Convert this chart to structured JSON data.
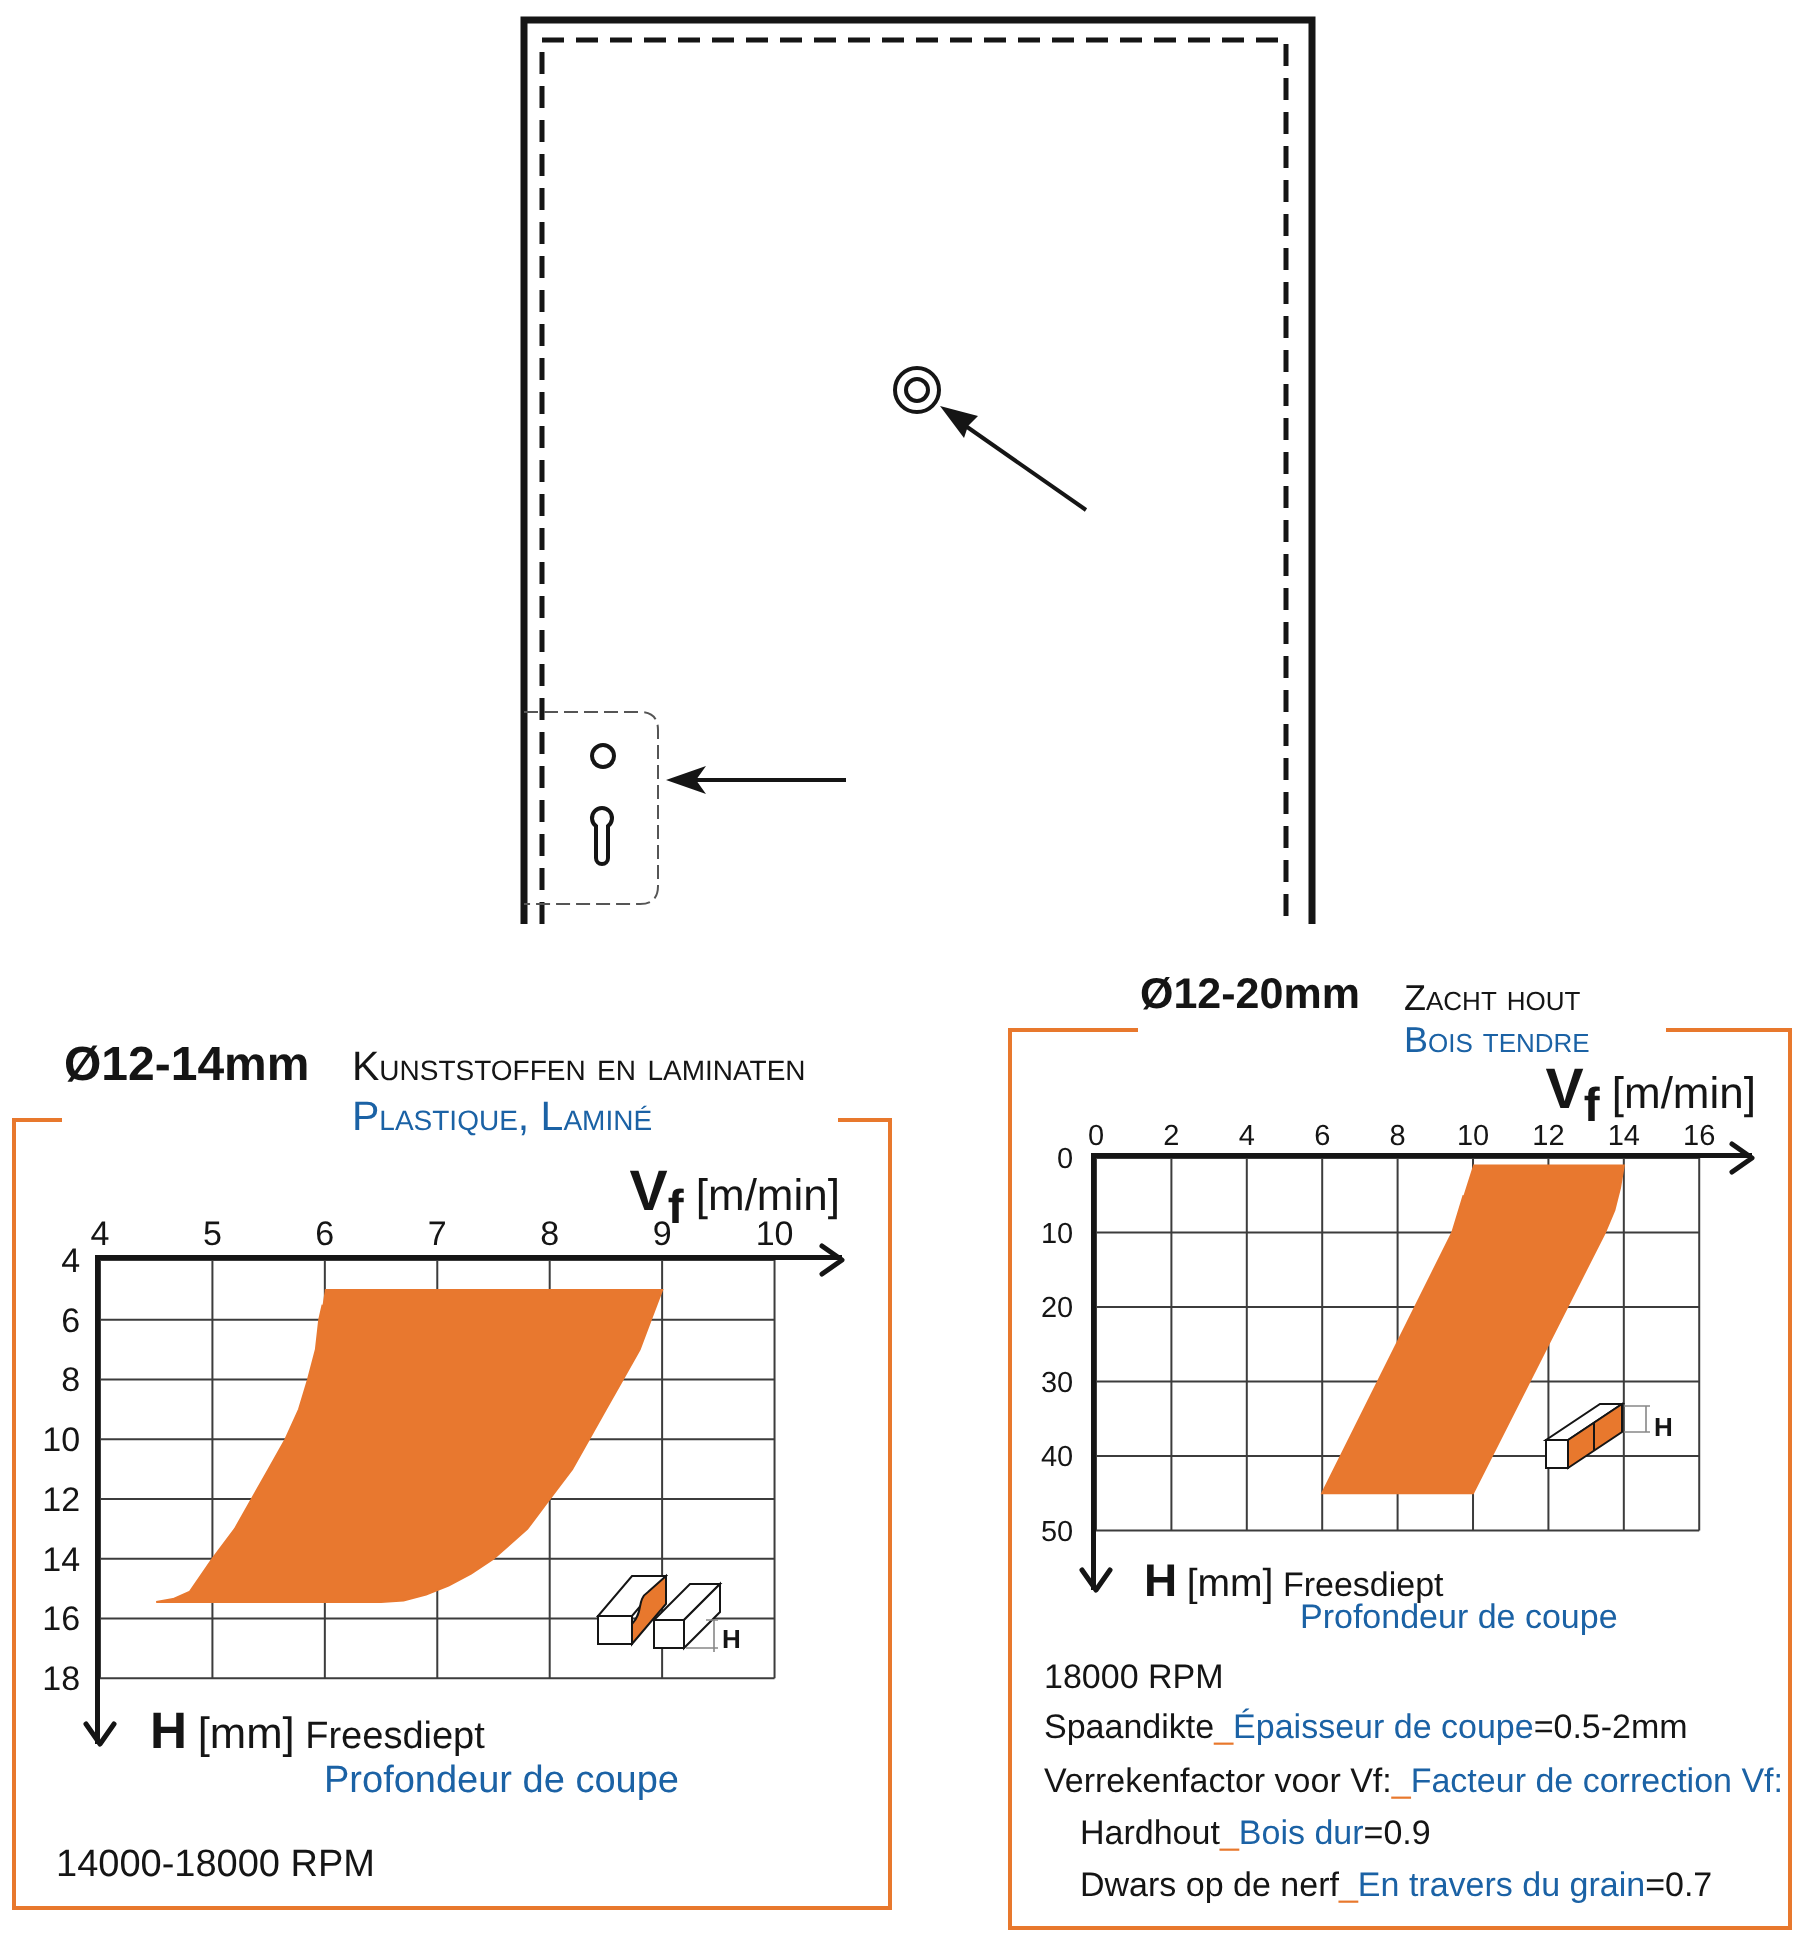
{
  "chart_data": [
    {
      "type": "area",
      "title": "Ø12-14mm",
      "subtitle": "Kunststoffen en laminaten",
      "xlabel": "V$_{f}$ [m/min]",
      "ylabel": "H [mm] Freesdiept",
      "annotations": [
        "Plastique, Laminé",
        "Profondeur de coupe",
        "14000-18000 RPM",
        "H"
      ],
      "series": [
        {
          "color": "#e8782f",
          "x": [
            6,
            9,
            8.95,
            8.9,
            8.8,
            8.65,
            8.5,
            8.35,
            8.2,
            8.0,
            7.8,
            7.5,
            7.3,
            7.1,
            6.9,
            6.7,
            6.5,
            4.5,
            4.65,
            4.8,
            5.0,
            5.2,
            5.35,
            5.5,
            5.65,
            5.77,
            5.85,
            5.92,
            5.95,
            5.98
          ],
          "values": [
            5,
            5,
            5.5,
            6,
            7,
            8,
            9,
            10,
            11,
            12,
            13,
            14,
            14.5,
            14.9,
            15.2,
            15.4,
            15.45,
            15.45,
            15.35,
            15.1,
            14,
            13,
            12,
            11,
            10,
            9,
            8,
            7,
            6,
            5.5
          ]
        }
      ],
      "xlim": [
        4,
        10.6
      ],
      "xticks": [
        4,
        5,
        6,
        7,
        8,
        9,
        10
      ],
      "ylim": [
        20.2,
        4
      ],
      "yticks": [
        4,
        6,
        8,
        10,
        12,
        14,
        16,
        18
      ],
      "grid": true
    },
    {
      "type": "area",
      "title": "Ø12-20mm",
      "subtitle": "Zacht hout",
      "xlabel": "V$_{f}$ [m/min]",
      "ylabel": "H [mm] Freesdiept",
      "annotations": [
        "Bois tendre",
        "Profondeur de coupe",
        "H",
        "18000 RPM",
        "Spaandikte_Épaisseur de coupe=0.5-2mm",
        "Verrekenfactor voor Vf:_Facteur de correction Vf:",
        "Hardhout_Bois dur=0.9",
        "Dwars op de nerf_En travers du grain=0.7"
      ],
      "series": [
        {
          "color": "#e8782f",
          "x": [
            10,
            14,
            13.9,
            13.75,
            13.5,
            10,
            6,
            9.45,
            9.75
          ],
          "values": [
            1,
            1,
            4,
            7,
            10,
            45,
            45,
            10,
            5
          ]
        }
      ],
      "xlim": [
        0,
        17.4
      ],
      "xticks": [
        0,
        2,
        4,
        6,
        8,
        10,
        12,
        14,
        16
      ],
      "ylim": [
        58,
        0
      ],
      "yticks": [
        0,
        10,
        20,
        30,
        40,
        50
      ],
      "grid": true
    }
  ]
}
